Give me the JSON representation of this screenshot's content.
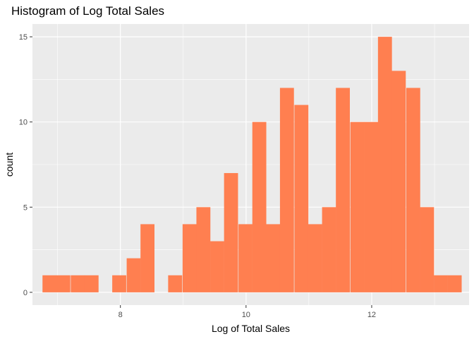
{
  "chart_data": {
    "type": "bar",
    "title": "Histogram of Log Total Sales",
    "xlabel": "Log of Total Sales",
    "ylabel": "count",
    "colors": {
      "bar": "#ff7f50",
      "panel": "#ebebeb",
      "grid": "#ffffff"
    },
    "xlim": [
      6.6,
      13.55
    ],
    "ylim": [
      -0.75,
      15.75
    ],
    "x_ticks": [
      8,
      10,
      12
    ],
    "y_ticks": [
      0,
      5,
      10,
      15
    ],
    "bin_width": 0.2224,
    "bin_starts": [
      6.76,
      6.98,
      7.21,
      7.43,
      7.65,
      7.87,
      8.1,
      8.32,
      8.54,
      8.76,
      8.99,
      9.21,
      9.43,
      9.65,
      9.88,
      10.1,
      10.32,
      10.54,
      10.77,
      10.99,
      11.21,
      11.43,
      11.66,
      11.88,
      12.1,
      12.32,
      12.55,
      12.77,
      12.99,
      13.21
    ],
    "counts": [
      1,
      1,
      1,
      1,
      0,
      1,
      2,
      4,
      0,
      1,
      4,
      5,
      3,
      7,
      4,
      10,
      4,
      12,
      11,
      4,
      5,
      12,
      10,
      10,
      15,
      13,
      12,
      5,
      1,
      1
    ]
  }
}
